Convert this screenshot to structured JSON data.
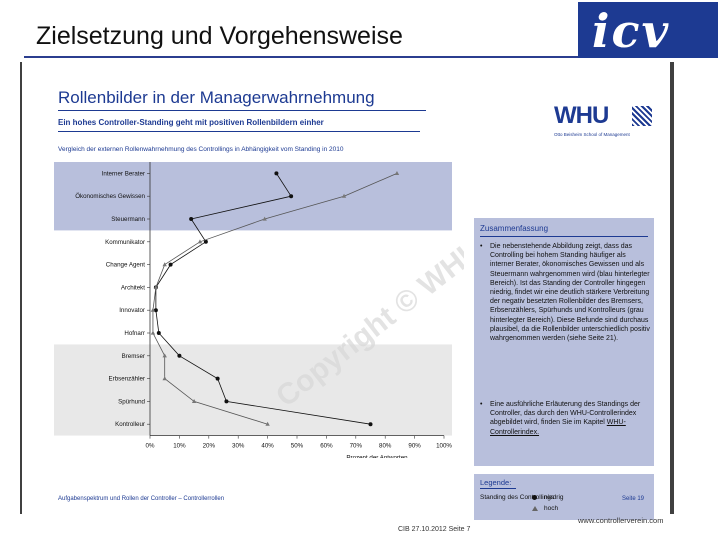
{
  "slide": {
    "title": "Zielsetzung und Vorgehensweise",
    "logo_text": "icv",
    "footer": "CIB 27.10.2012 Seite 7",
    "url": "www.controllerverein.com"
  },
  "document": {
    "heading": "Rollenbilder in der Managerwahrnehmung",
    "subheading": "Ein hohes Controller-Standing geht mit positiven Rollenbildern einher",
    "chart_caption": "Vergleich der externen Rollenwahrnehmung des Controllings in Abhängigkeit vom Standing in 2010",
    "whu_logo": "WHU",
    "whu_tagline": "Otto Beisheim School of Management",
    "footer_left": "Aufgabenspektrum und Rollen der Controller – Controllerrollen",
    "footer_right": "Seite 19",
    "watermark": "Copyright © WHU 2012",
    "summary": {
      "title": "Zusammenfassung",
      "items": [
        "Die nebenstehende Abbildung zeigt, dass das Controlling bei hohem Standing häufiger als interner Berater, ökonomisches Gewissen und als Steuermann wahrgenommen wird (blau hinterlegter Bereich). Ist das Standing der Controller hingegen niedrig, findet wir eine deutlich stärkere Verbreitung der negativ besetzten Rollenbilder des Bremsers, Erbsenzählers, Spürhunds und Kontrolleurs (grau hinterlegter Bereich). Diese Befunde sind durchaus plausibel, da die Rollenbilder unterschiedlich positiv wahrgenommen werden (siehe Seite 21).",
        "Eine ausführliche Erläuterung des Standings der Controller, das durch den WHU-Controllerindex abgebildet wird, finden Sie im Kapitel"
      ],
      "link": "WHU-Controllerindex."
    },
    "legend": {
      "title": "Legende:",
      "label": "Standing des Controllings",
      "entries": [
        "niedrig",
        "hoch"
      ]
    }
  },
  "colors": {
    "brand": "#1d3a92",
    "band_blue": "#b8bfdc",
    "band_gray": "#e8e8e8",
    "series_low": "#111111",
    "series_high": "#555555"
  },
  "chart_data": {
    "type": "line",
    "title": "Vergleich der externen Rollenwahrnehmung des Controllings in Abhängigkeit vom Standing in 2010",
    "xlabel": "Prozent der Antworten",
    "ylabel": "",
    "xlim": [
      0,
      100
    ],
    "x_ticks": [
      "0%",
      "10%",
      "20%",
      "30%",
      "40%",
      "50%",
      "60%",
      "70%",
      "80%",
      "90%",
      "100%"
    ],
    "categories": [
      "Interner Berater",
      "Ökonomisches Gewissen",
      "Steuermann",
      "Kommunikator",
      "Change Agent",
      "Architekt",
      "Innovator",
      "Hofnarr",
      "Bremser",
      "Erbsenzähler",
      "Spürhund",
      "Kontrolleur"
    ],
    "series": [
      {
        "name": "niedrig",
        "values": [
          43,
          48,
          14,
          19,
          7,
          2,
          2,
          3,
          10,
          23,
          26,
          75
        ]
      },
      {
        "name": "hoch",
        "values": [
          84,
          66,
          39,
          17,
          5,
          2,
          1,
          1,
          5,
          5,
          15,
          40
        ]
      }
    ],
    "bands": [
      {
        "from": "Interner Berater",
        "to": "Steuermann",
        "color": "blue"
      },
      {
        "from": "Bremser",
        "to": "Kontrolleur",
        "color": "gray"
      }
    ],
    "grid": false,
    "legend": "right"
  }
}
